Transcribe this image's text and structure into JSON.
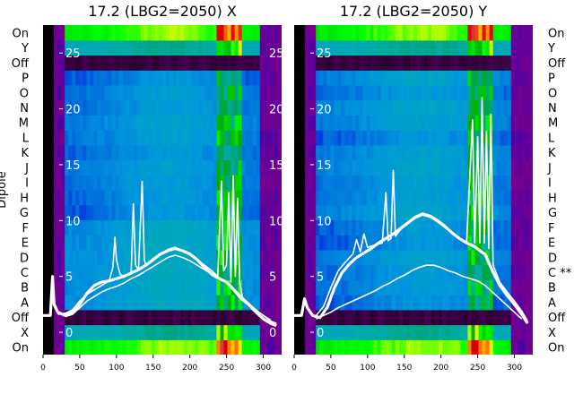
{
  "chart_data": [
    {
      "type": "heatmap",
      "title": "17.2 (LBG2=2050) X",
      "xlabel": "",
      "ylabel": "Dipole",
      "x_ticks": [
        0,
        50,
        100,
        150,
        200,
        250,
        300
      ],
      "xlim": [
        0,
        325
      ],
      "y_categories": [
        "On",
        "X",
        "Off",
        "A",
        "B",
        "C",
        "D",
        "E",
        "F",
        "G",
        "H",
        "I",
        "J",
        "K",
        "L",
        "M",
        "N",
        "O",
        "P",
        "Off",
        "Y",
        "On"
      ],
      "overlay_axis_ticks": [
        0,
        5,
        10,
        15,
        20,
        25
      ],
      "overlay_ylim": [
        -2,
        27.5
      ],
      "colormap": "nipy_spectral",
      "overlay_series": [
        {
          "style": "thick",
          "points": [
            [
              0,
              1.5
            ],
            [
              10,
              1.5
            ],
            [
              13,
              5
            ],
            [
              15,
              2.5
            ],
            [
              20,
              1.8
            ],
            [
              30,
              1.5
            ],
            [
              40,
              1.8
            ],
            [
              50,
              2.5
            ],
            [
              60,
              3.5
            ],
            [
              70,
              4.2
            ],
            [
              80,
              4.5
            ],
            [
              90,
              4.6
            ],
            [
              100,
              4.8
            ],
            [
              110,
              5.0
            ],
            [
              120,
              5.3
            ],
            [
              130,
              5.6
            ],
            [
              140,
              6.0
            ],
            [
              150,
              6.5
            ],
            [
              160,
              7.0
            ],
            [
              170,
              7.3
            ],
            [
              180,
              7.5
            ],
            [
              190,
              7.3
            ],
            [
              200,
              7.0
            ],
            [
              210,
              6.5
            ],
            [
              220,
              5.8
            ],
            [
              230,
              5.2
            ],
            [
              240,
              4.8
            ],
            [
              250,
              4.5
            ],
            [
              260,
              3.8
            ],
            [
              270,
              3.0
            ],
            [
              280,
              2.5
            ],
            [
              290,
              1.8
            ],
            [
              300,
              1.2
            ],
            [
              310,
              0.8
            ],
            [
              318,
              0.6
            ]
          ]
        },
        {
          "style": "thin",
          "points": [
            [
              20,
              1.6
            ],
            [
              30,
              1.7
            ],
            [
              40,
              2.0
            ],
            [
              50,
              2.8
            ],
            [
              60,
              3.4
            ],
            [
              70,
              3.8
            ],
            [
              80,
              4.2
            ],
            [
              90,
              4.6
            ],
            [
              95,
              5.8
            ],
            [
              98,
              8.5
            ],
            [
              100,
              6.5
            ],
            [
              105,
              5.2
            ],
            [
              110,
              5.0
            ],
            [
              120,
              5.2
            ],
            [
              123,
              11.5
            ],
            [
              126,
              6.0
            ],
            [
              130,
              5.6
            ],
            [
              135,
              13.5
            ],
            [
              138,
              6.5
            ],
            [
              140,
              6.0
            ],
            [
              150,
              6.6
            ],
            [
              160,
              7.0
            ],
            [
              170,
              7.4
            ],
            [
              180,
              7.6
            ],
            [
              190,
              7.3
            ],
            [
              200,
              7.0
            ],
            [
              210,
              6.5
            ],
            [
              220,
              6.0
            ],
            [
              230,
              5.5
            ],
            [
              238,
              5.0
            ],
            [
              243,
              13.5
            ],
            [
              246,
              5.5
            ],
            [
              250,
              6.0
            ],
            [
              253,
              12.5
            ],
            [
              256,
              4.5
            ],
            [
              259,
              14.0
            ],
            [
              262,
              5.0
            ],
            [
              265,
              12.0
            ],
            [
              268,
              4.5
            ],
            [
              272,
              3.0
            ],
            [
              280,
              2.5
            ],
            [
              290,
              2.0
            ],
            [
              300,
              1.5
            ],
            [
              310,
              1.0
            ],
            [
              318,
              0.8
            ]
          ]
        },
        {
          "style": "thin",
          "points": [
            [
              30,
              1.4
            ],
            [
              40,
              1.6
            ],
            [
              50,
              2.2
            ],
            [
              60,
              2.8
            ],
            [
              70,
              3.2
            ],
            [
              80,
              3.6
            ],
            [
              90,
              3.9
            ],
            [
              100,
              4.1
            ],
            [
              110,
              4.4
            ],
            [
              120,
              4.8
            ],
            [
              130,
              5.1
            ],
            [
              140,
              5.5
            ],
            [
              150,
              5.9
            ],
            [
              160,
              6.3
            ],
            [
              170,
              6.7
            ],
            [
              180,
              6.9
            ],
            [
              190,
              6.7
            ],
            [
              200,
              6.4
            ],
            [
              210,
              6.0
            ],
            [
              220,
              5.6
            ],
            [
              230,
              5.2
            ],
            [
              240,
              4.9
            ],
            [
              250,
              4.5
            ],
            [
              260,
              3.9
            ],
            [
              270,
              3.2
            ],
            [
              280,
              2.6
            ],
            [
              290,
              2.0
            ],
            [
              300,
              1.5
            ],
            [
              310,
              1.1
            ]
          ]
        }
      ]
    },
    {
      "type": "heatmap",
      "title": "17.2 (LBG2=2050) Y",
      "xlabel": "",
      "ylabel": "",
      "x_ticks": [
        0,
        50,
        100,
        150,
        200,
        250,
        300
      ],
      "xlim": [
        0,
        325
      ],
      "y_categories": [
        "On",
        "X",
        "Off",
        "A",
        "B",
        "C **",
        "D",
        "E",
        "F",
        "G",
        "H",
        "I",
        "J",
        "K",
        "L",
        "M",
        "N",
        "O",
        "P",
        "Off",
        "Y",
        "On"
      ],
      "overlay_axis_ticks": [
        0,
        5,
        10,
        15,
        20,
        25
      ],
      "overlay_ylim": [
        -2,
        27.5
      ],
      "colormap": "nipy_spectral",
      "overlay_series": [
        {
          "style": "thick",
          "points": [
            [
              0,
              1.5
            ],
            [
              10,
              1.5
            ],
            [
              14,
              3.0
            ],
            [
              18,
              2.2
            ],
            [
              25,
              1.5
            ],
            [
              35,
              1.3
            ],
            [
              45,
              2.2
            ],
            [
              55,
              4.0
            ],
            [
              65,
              5.3
            ],
            [
              75,
              6.1
            ],
            [
              85,
              6.7
            ],
            [
              95,
              7.1
            ],
            [
              105,
              7.5
            ],
            [
              115,
              8.0
            ],
            [
              125,
              8.4
            ],
            [
              135,
              8.8
            ],
            [
              145,
              9.3
            ],
            [
              155,
              9.8
            ],
            [
              165,
              10.3
            ],
            [
              175,
              10.6
            ],
            [
              185,
              10.4
            ],
            [
              195,
              10.0
            ],
            [
              205,
              9.5
            ],
            [
              215,
              8.9
            ],
            [
              225,
              8.4
            ],
            [
              235,
              8.0
            ],
            [
              245,
              7.7
            ],
            [
              255,
              7.2
            ],
            [
              260,
              7.0
            ],
            [
              270,
              5.5
            ],
            [
              280,
              4.2
            ],
            [
              290,
              3.3
            ],
            [
              300,
              2.5
            ],
            [
              310,
              1.6
            ],
            [
              318,
              0.8
            ]
          ]
        },
        {
          "style": "thin",
          "points": [
            [
              30,
              1.5
            ],
            [
              40,
              2.3
            ],
            [
              50,
              4.0
            ],
            [
              60,
              5.5
            ],
            [
              70,
              6.3
            ],
            [
              80,
              7.0
            ],
            [
              85,
              8.3
            ],
            [
              90,
              7.2
            ],
            [
              95,
              8.8
            ],
            [
              100,
              7.6
            ],
            [
              110,
              7.8
            ],
            [
              120,
              8.0
            ],
            [
              125,
              12.5
            ],
            [
              128,
              8.2
            ],
            [
              132,
              8.4
            ],
            [
              135,
              14.5
            ],
            [
              138,
              8.6
            ],
            [
              145,
              9.2
            ],
            [
              155,
              9.8
            ],
            [
              165,
              10.2
            ],
            [
              175,
              10.5
            ],
            [
              185,
              10.3
            ],
            [
              195,
              9.9
            ],
            [
              205,
              9.4
            ],
            [
              215,
              8.9
            ],
            [
              225,
              8.4
            ],
            [
              235,
              8.1
            ],
            [
              243,
              19.0
            ],
            [
              246,
              8.0
            ],
            [
              250,
              17.5
            ],
            [
              253,
              8.0
            ],
            [
              256,
              21.0
            ],
            [
              259,
              8.0
            ],
            [
              262,
              18.0
            ],
            [
              265,
              7.5
            ],
            [
              268,
              19.5
            ],
            [
              271,
              6.0
            ],
            [
              280,
              4.5
            ],
            [
              290,
              3.6
            ],
            [
              300,
              2.8
            ],
            [
              310,
              1.9
            ],
            [
              318,
              1.0
            ]
          ]
        },
        {
          "style": "thin",
          "points": [
            [
              30,
              1.2
            ],
            [
              40,
              1.5
            ],
            [
              50,
              1.8
            ],
            [
              60,
              2.2
            ],
            [
              70,
              2.5
            ],
            [
              80,
              2.8
            ],
            [
              90,
              3.1
            ],
            [
              100,
              3.4
            ],
            [
              110,
              3.7
            ],
            [
              120,
              4.1
            ],
            [
              130,
              4.4
            ],
            [
              140,
              4.8
            ],
            [
              150,
              5.1
            ],
            [
              160,
              5.5
            ],
            [
              170,
              5.8
            ],
            [
              180,
              6.0
            ],
            [
              190,
              6.0
            ],
            [
              200,
              5.8
            ],
            [
              210,
              5.5
            ],
            [
              220,
              5.3
            ],
            [
              230,
              5.0
            ],
            [
              240,
              4.8
            ],
            [
              250,
              4.6
            ],
            [
              260,
              4.2
            ],
            [
              270,
              3.6
            ],
            [
              280,
              3.0
            ],
            [
              290,
              2.4
            ],
            [
              300,
              1.8
            ],
            [
              310,
              1.2
            ]
          ]
        }
      ]
    }
  ]
}
